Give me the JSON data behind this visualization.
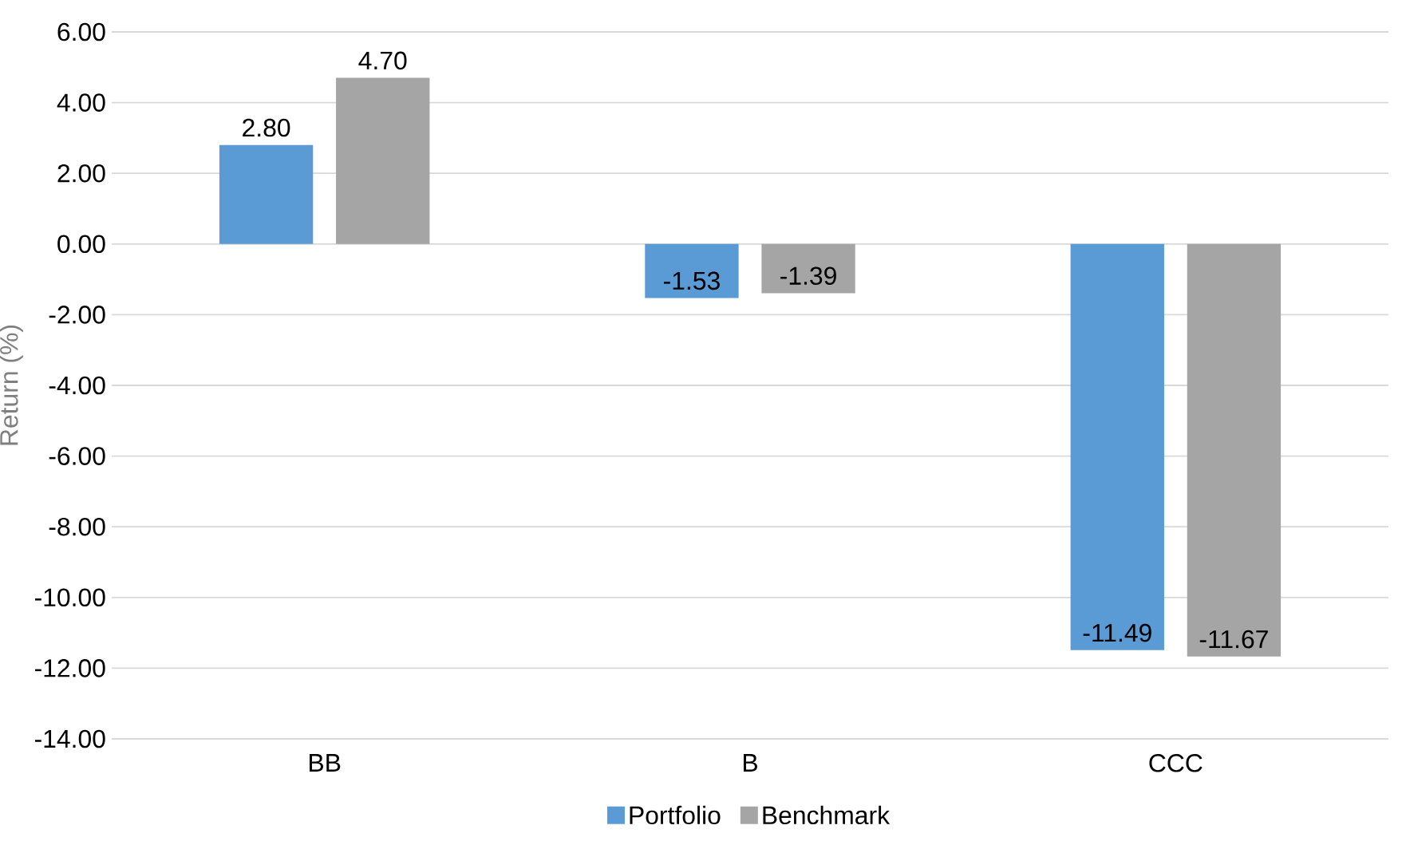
{
  "chart_data": {
    "type": "bar",
    "ylabel": "Return (%)",
    "categories": [
      "BB",
      "B",
      "CCC"
    ],
    "series": [
      {
        "name": "Portfolio",
        "color": "#5b9bd5",
        "values": [
          2.8,
          -1.53,
          -11.49
        ],
        "value_labels": [
          "2.80",
          "-1.53",
          "-11.49"
        ]
      },
      {
        "name": "Benchmark",
        "color": "#a5a5a5",
        "values": [
          4.7,
          -1.39,
          -11.67
        ],
        "value_labels": [
          "4.70",
          "-1.39",
          "-11.67"
        ]
      }
    ],
    "ylim": [
      -14,
      6
    ],
    "yticks": [
      {
        "value": 6,
        "label": "6.00"
      },
      {
        "value": 4,
        "label": "4.00"
      },
      {
        "value": 2,
        "label": "2.00"
      },
      {
        "value": 0,
        "label": "0.00"
      },
      {
        "value": -2,
        "label": "-2.00"
      },
      {
        "value": -4,
        "label": "-4.00"
      },
      {
        "value": -6,
        "label": "-6.00"
      },
      {
        "value": -8,
        "label": "-8.00"
      },
      {
        "value": -10,
        "label": "-10.00"
      },
      {
        "value": -12,
        "label": "-12.00"
      },
      {
        "value": -14,
        "label": "-14.00"
      }
    ],
    "grid": "y",
    "legend": "bottom"
  }
}
